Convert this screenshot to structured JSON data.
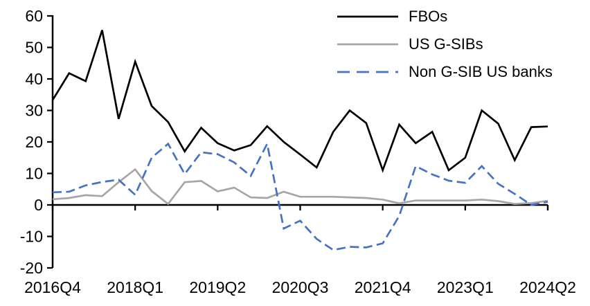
{
  "chart_data": {
    "type": "line",
    "title": "",
    "xlabel": "",
    "ylabel": "",
    "grid": false,
    "legend_position": "top-right",
    "ylim": [
      -20,
      60
    ],
    "yticks": [
      60,
      50,
      40,
      30,
      20,
      10,
      0,
      -10,
      -20
    ],
    "xticks": [
      {
        "index": 0,
        "label": "2016Q4"
      },
      {
        "index": 5,
        "label": "2018Q1"
      },
      {
        "index": 10,
        "label": "2019Q2"
      },
      {
        "index": 15,
        "label": "2020Q3"
      },
      {
        "index": 20,
        "label": "2021Q4"
      },
      {
        "index": 25,
        "label": "2023Q1"
      },
      {
        "index": 30,
        "label": "2024Q2"
      }
    ],
    "categories": [
      "2016Q4",
      "2017Q1",
      "2017Q2",
      "2017Q3",
      "2017Q4",
      "2018Q1",
      "2018Q2",
      "2018Q3",
      "2018Q4",
      "2019Q1",
      "2019Q2",
      "2019Q3",
      "2019Q4",
      "2020Q1",
      "2020Q2",
      "2020Q3",
      "2020Q4",
      "2021Q1",
      "2021Q2",
      "2021Q3",
      "2021Q4",
      "2022Q1",
      "2022Q2",
      "2022Q3",
      "2022Q4",
      "2023Q1",
      "2023Q2",
      "2023Q3",
      "2023Q4",
      "2024Q1",
      "2024Q2"
    ],
    "series": [
      {
        "name": "FBOs",
        "color": "#000000",
        "style": "solid",
        "values": [
          33.3,
          41.8,
          39.3,
          55.5,
          27.3,
          45.5,
          31.4,
          26.3,
          17.0,
          24.5,
          19.6,
          17.3,
          19.0,
          25.0,
          20.0,
          16.0,
          11.9,
          23.2,
          30.0,
          26.0,
          11.0,
          25.5,
          19.6,
          23.2,
          11.0,
          15.0,
          30.0,
          25.8,
          14.2,
          24.7,
          24.9
        ]
      },
      {
        "name": "US G-SIBs",
        "color": "#a6a6a6",
        "style": "solid",
        "values": [
          1.8,
          2.2,
          3.1,
          2.8,
          7.2,
          11.3,
          4.4,
          0.3,
          7.2,
          7.6,
          4.3,
          5.5,
          2.4,
          2.2,
          4.2,
          2.6,
          2.6,
          2.6,
          2.4,
          2.2,
          1.7,
          0.5,
          1.4,
          1.4,
          1.4,
          1.4,
          1.7,
          1.2,
          0.3,
          0.6,
          1.3
        ]
      },
      {
        "name": "Non G-SIB US banks",
        "color": "#4472c4",
        "style": "dashed",
        "values": [
          4.0,
          4.2,
          6.2,
          7.3,
          8.0,
          3.2,
          15.0,
          19.4,
          9.8,
          16.7,
          16.1,
          13.5,
          9.2,
          19.4,
          -7.5,
          -5.0,
          -10.8,
          -14.3,
          -13.3,
          -13.5,
          -12.2,
          -3.5,
          12.3,
          9.7,
          7.7,
          7.0,
          12.3,
          6.7,
          3.5,
          0.0,
          1.0
        ]
      }
    ]
  }
}
